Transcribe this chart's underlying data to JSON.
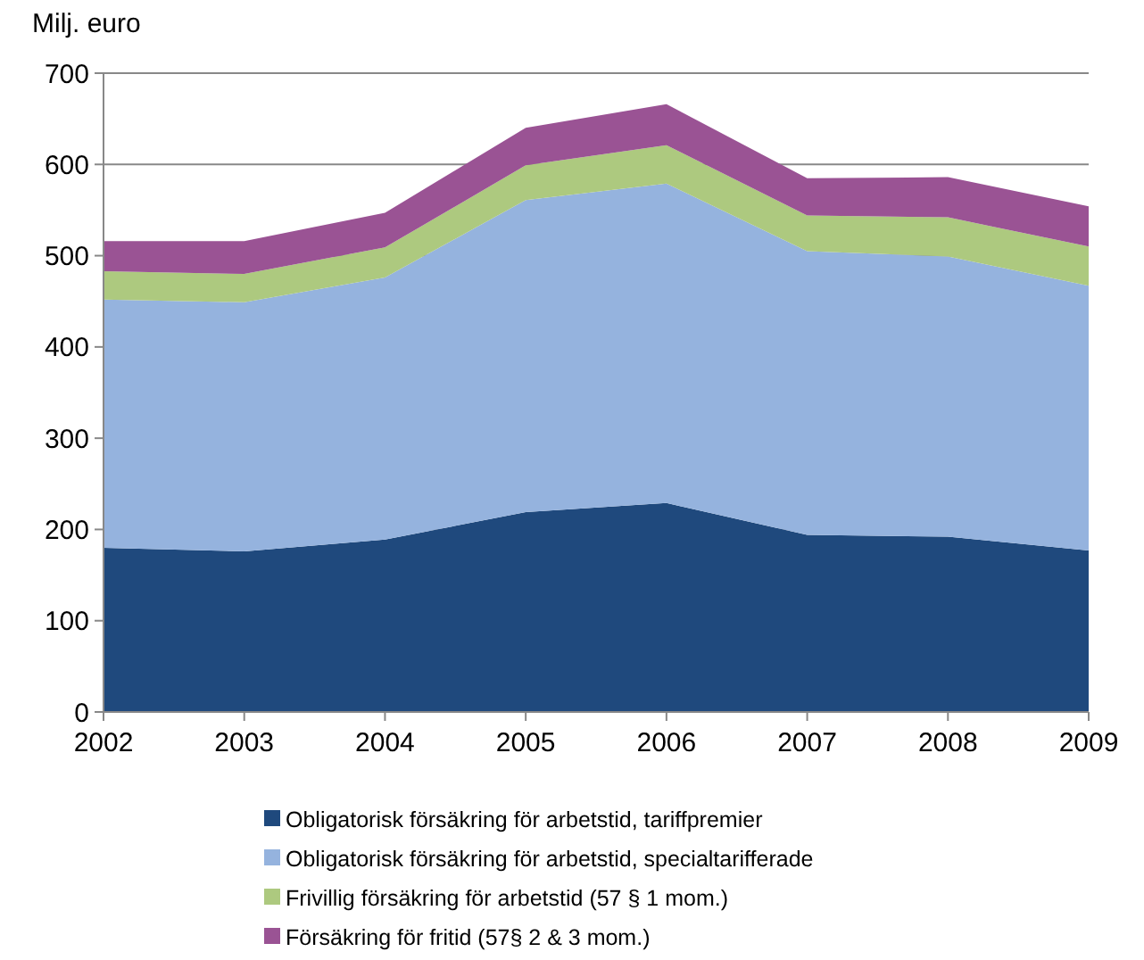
{
  "chart_data": {
    "type": "area",
    "stacked": true,
    "ylabel": "Milj. euro",
    "categories": [
      "2002",
      "2003",
      "2004",
      "2005",
      "2006",
      "2007",
      "2008",
      "2009"
    ],
    "series": [
      {
        "name": "Obligatorisk försäkring för arbetstid, tariffpremier",
        "color": "#1f497d",
        "values": [
          180,
          176,
          189,
          219,
          229,
          194,
          192,
          177
        ]
      },
      {
        "name": "Obligatorisk försäkring för arbetstid, specialtarifferade",
        "color": "#95b3de",
        "values": [
          272,
          273,
          287,
          342,
          350,
          311,
          307,
          290
        ]
      },
      {
        "name": "Frivillig försäkring för arbetstid (57 § 1 mom.)",
        "color": "#adc97f",
        "values": [
          31,
          31,
          33,
          38,
          42,
          39,
          43,
          43
        ]
      },
      {
        "name": "Försäkring för fritid (57§ 2 & 3 mom.)",
        "color": "#9a5394",
        "values": [
          33,
          36,
          38,
          41,
          45,
          41,
          44,
          44
        ]
      }
    ],
    "ylim": [
      0,
      700
    ],
    "yticks": [
      0,
      100,
      200,
      300,
      400,
      500,
      600,
      700
    ],
    "grid": "y",
    "legend": "bottom"
  }
}
